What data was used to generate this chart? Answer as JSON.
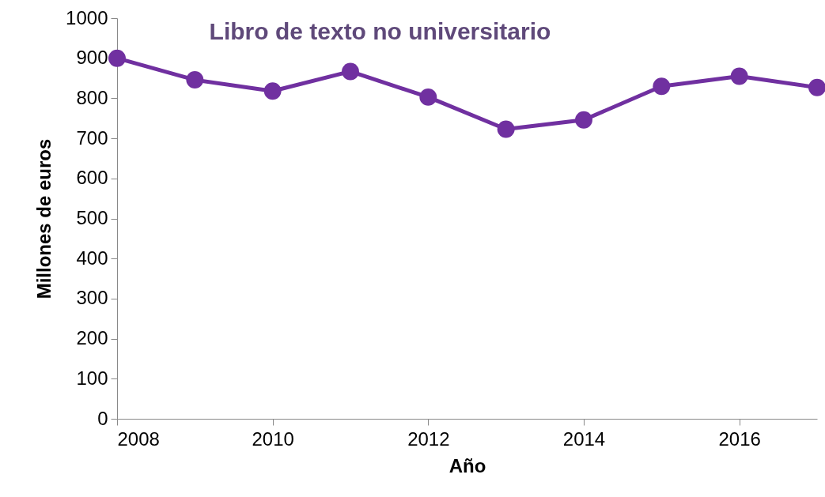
{
  "chart_data": {
    "type": "line",
    "title": "Libro de texto no universitario",
    "xlabel": "Año",
    "ylabel": "Millones de euros",
    "x": [
      2008,
      2009,
      2010,
      2011,
      2012,
      2013,
      2014,
      2015,
      2016,
      2017
    ],
    "series": [
      {
        "color": "#7030a0",
        "values": [
          900,
          846,
          818,
          867,
          803,
          723,
          746,
          830,
          855,
          827
        ]
      }
    ],
    "xlim": [
      2008,
      2017
    ],
    "xticks": [
      2008,
      2010,
      2012,
      2014,
      2016
    ],
    "ylim": [
      0,
      1000
    ],
    "yticks": [
      0,
      100,
      200,
      300,
      400,
      500,
      600,
      700,
      800,
      900,
      1000
    ],
    "grid": false,
    "marker": "circle",
    "line_style": "solid"
  }
}
